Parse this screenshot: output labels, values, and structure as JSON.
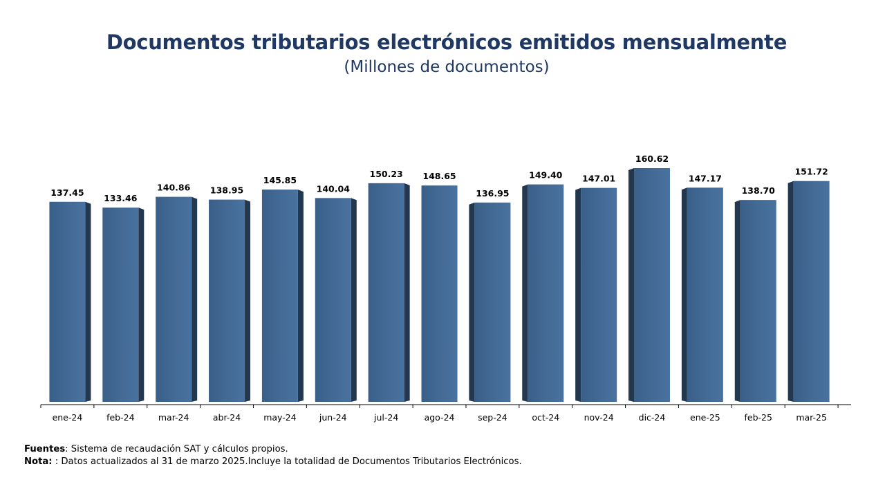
{
  "header": {
    "title": "Documentos tributarios electrónicos emitidos mensualmente",
    "subtitle": "(Millones de documentos)"
  },
  "footer": {
    "sources_label": "Fuentes",
    "sources_text": ": Sistema de recaudación SAT y cálculos propios.",
    "note_label": "Nota:",
    "note_text": " : Datos actualizados al 31 de marzo 2025.Incluye la totalidad de Documentos Tributarios Electrónicos."
  },
  "colors": {
    "title": "#1f3864",
    "bar_face": "#426a94",
    "bar_side": "#23384f",
    "axis": "#000000"
  },
  "chart_data": {
    "type": "bar",
    "title": "Documentos tributarios electrónicos emitidos mensualmente",
    "subtitle": "(Millones de documentos)",
    "categories": [
      "ene-24",
      "feb-24",
      "mar-24",
      "abr-24",
      "may-24",
      "jun-24",
      "jul-24",
      "ago-24",
      "sep-24",
      "oct-24",
      "nov-24",
      "dic-24",
      "ene-25",
      "feb-25",
      "mar-25"
    ],
    "values": [
      137.45,
      133.46,
      140.86,
      138.95,
      145.85,
      140.04,
      150.23,
      148.65,
      136.95,
      149.4,
      147.01,
      160.62,
      147.17,
      138.7,
      151.72
    ],
    "labels": [
      "137.45",
      "133.46",
      "140.86",
      "138.95",
      "145.85",
      "140.04",
      "150.23",
      "148.65",
      "136.95",
      "149.40",
      "147.01",
      "160.62",
      "147.17",
      "138.70",
      "151.72"
    ],
    "xlabel": "",
    "ylabel": "",
    "ylim": [
      0,
      160.62
    ],
    "grid": false,
    "style": "3d-bars"
  }
}
